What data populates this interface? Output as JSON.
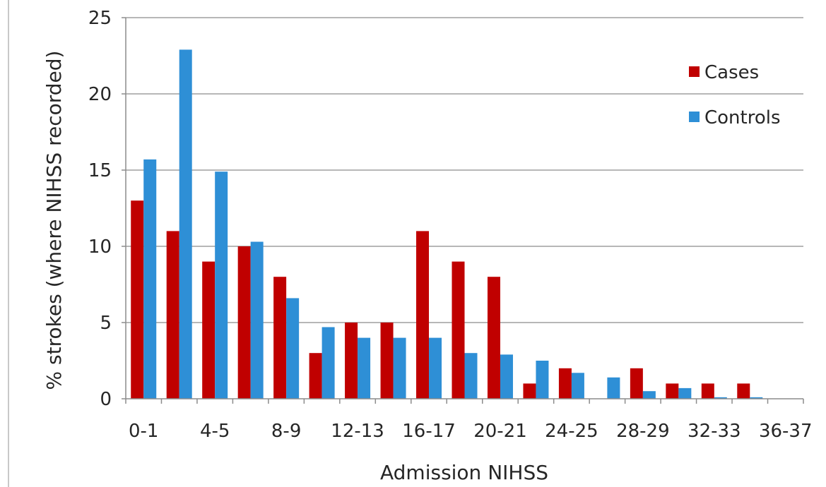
{
  "chart_data": {
    "type": "bar",
    "xlabel": "Admission NIHSS",
    "ylabel": "% strokes (where NIHSS recorded)",
    "ylim": [
      0,
      25
    ],
    "yticks": [
      0,
      5,
      10,
      15,
      20,
      25
    ],
    "grid": true,
    "legend_position": "top-right",
    "categories": [
      "0-1",
      "2-3",
      "4-5",
      "6-7",
      "8-9",
      "10-11",
      "12-13",
      "14-15",
      "16-17",
      "18-19",
      "20-21",
      "22-23",
      "24-25",
      "26-27",
      "28-29",
      "30-31",
      "32-33",
      "34-35",
      "36-37"
    ],
    "tick_labels": [
      "0-1",
      "",
      "4-5",
      "",
      "8-9",
      "",
      "12-13",
      "",
      "16-17",
      "",
      "20-21",
      "",
      "24-25",
      "",
      "28-29",
      "",
      "32-33",
      "",
      "36-37"
    ],
    "series": [
      {
        "name": "Cases",
        "color": "#c00000",
        "values": [
          13,
          11,
          9,
          10,
          8,
          3,
          5,
          5,
          11,
          9,
          8,
          1,
          2,
          0,
          2,
          1,
          1,
          1,
          0
        ]
      },
      {
        "name": "Controls",
        "color": "#2e8fd6",
        "values": [
          15.7,
          22.9,
          14.9,
          10.3,
          6.6,
          4.7,
          4,
          4,
          4,
          3,
          2.9,
          2.5,
          1.7,
          1.4,
          0.5,
          0.7,
          0.1,
          0.1,
          0
        ]
      }
    ]
  }
}
